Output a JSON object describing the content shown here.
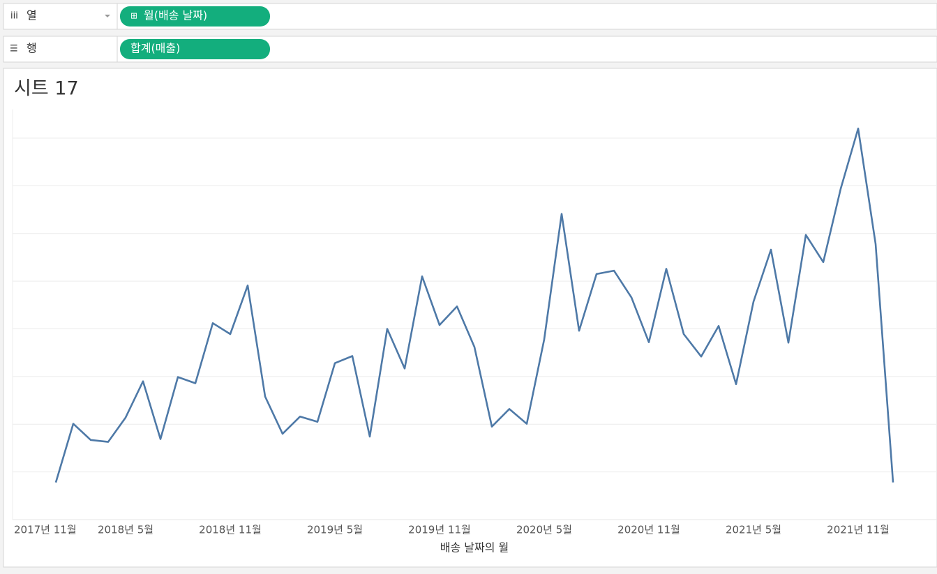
{
  "shelves": {
    "columns": {
      "label": "열",
      "pill": "월(배송 날짜)"
    },
    "rows": {
      "label": "행",
      "pill": "합계(매출)"
    }
  },
  "chart_data": {
    "type": "line",
    "title": "시트 17",
    "x_label": "배송 날짜의 월",
    "color": "#4e79a7",
    "x": [
      "2018-01",
      "2018-02",
      "2018-03",
      "2018-04",
      "2018-05",
      "2018-06",
      "2018-07",
      "2018-08",
      "2018-09",
      "2018-10",
      "2018-11",
      "2018-12",
      "2019-01",
      "2019-02",
      "2019-03",
      "2019-04",
      "2019-05",
      "2019-06",
      "2019-07",
      "2019-08",
      "2019-09",
      "2019-10",
      "2019-11",
      "2019-12",
      "2020-01",
      "2020-02",
      "2020-03",
      "2020-04",
      "2020-05",
      "2020-06",
      "2020-07",
      "2020-08",
      "2020-09",
      "2020-10",
      "2020-11",
      "2020-12",
      "2021-01",
      "2021-02",
      "2021-03",
      "2021-04",
      "2021-05",
      "2021-06",
      "2021-07",
      "2021-08",
      "2021-09",
      "2021-10",
      "2021-11",
      "2021-12",
      "2022-01"
    ],
    "values": [
      0.78,
      2.01,
      1.67,
      1.63,
      2.14,
      2.9,
      1.69,
      2.99,
      2.86,
      4.12,
      3.89,
      4.91,
      2.58,
      1.8,
      2.16,
      2.05,
      3.28,
      3.43,
      1.74,
      4.0,
      3.17,
      5.1,
      4.08,
      4.47,
      3.62,
      1.95,
      2.32,
      2.01,
      3.78,
      6.41,
      3.96,
      5.15,
      5.22,
      4.66,
      3.72,
      5.26,
      3.89,
      3.42,
      4.06,
      2.84,
      4.57,
      5.66,
      3.71,
      5.97,
      5.4,
      6.94,
      8.2,
      5.78,
      0.78
    ],
    "xlim": [
      "2017-11",
      "2022-03"
    ],
    "xticks": [
      {
        "value": "2017-11",
        "label": "2017년 11월"
      },
      {
        "value": "2018-05",
        "label": "2018년 5월"
      },
      {
        "value": "2018-11",
        "label": "2018년 11월"
      },
      {
        "value": "2019-05",
        "label": "2019년 5월"
      },
      {
        "value": "2019-11",
        "label": "2019년 11월"
      },
      {
        "value": "2020-05",
        "label": "2020년 5월"
      },
      {
        "value": "2020-11",
        "label": "2020년 11월"
      },
      {
        "value": "2021-05",
        "label": "2021년 5월"
      },
      {
        "value": "2021-11",
        "label": "2021년 11월"
      }
    ],
    "ylim": [
      0,
      8.6
    ],
    "yticks": [
      1,
      2,
      3,
      4,
      5,
      6,
      7,
      8
    ],
    "grid": true
  }
}
